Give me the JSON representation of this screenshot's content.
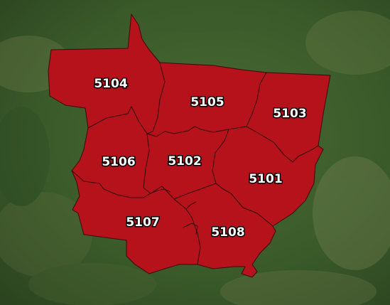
{
  "map": {
    "region_color": "#b5121b",
    "border_color": "#3a0a0a",
    "regions": [
      {
        "code": "5104"
      },
      {
        "code": "5105"
      },
      {
        "code": "5103"
      },
      {
        "code": "5106"
      },
      {
        "code": "5102"
      },
      {
        "code": "5101"
      },
      {
        "code": "5107"
      },
      {
        "code": "5108"
      }
    ]
  }
}
